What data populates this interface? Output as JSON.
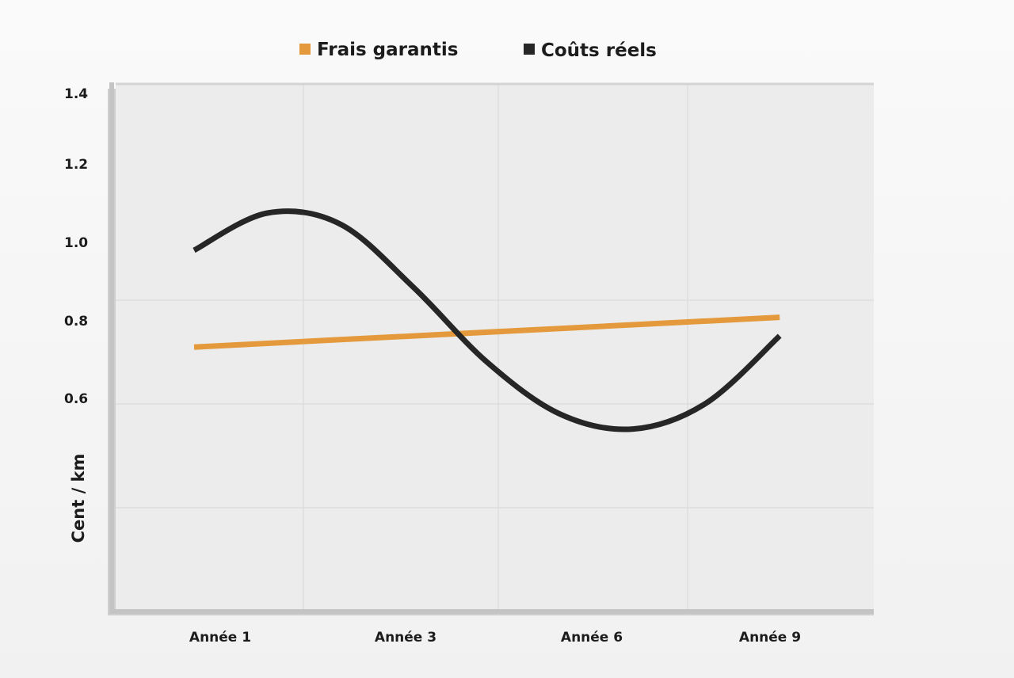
{
  "chart_data": {
    "type": "line",
    "title": "",
    "xlabel": "",
    "ylabel": "Cent / km",
    "categories": [
      "Année 1",
      "Année 3",
      "Année 6",
      "Année 9"
    ],
    "yticks": [
      "1.4",
      "1.2",
      "1.0",
      "0.8",
      "0.6"
    ],
    "grid": true,
    "legend_position": "top",
    "series": [
      {
        "name": "Frais garantis",
        "color": "#e49a3c",
        "x": [
          1,
          3,
          6,
          9
        ],
        "values": [
          0.72,
          0.74,
          0.77,
          0.8
        ]
      },
      {
        "name": "Coûts réels",
        "color": "#262626",
        "x": [
          1,
          2,
          3,
          4,
          5,
          6,
          7,
          8,
          9
        ],
        "values": [
          0.98,
          1.08,
          1.05,
          0.88,
          0.68,
          0.54,
          0.5,
          0.57,
          0.75
        ]
      }
    ]
  }
}
